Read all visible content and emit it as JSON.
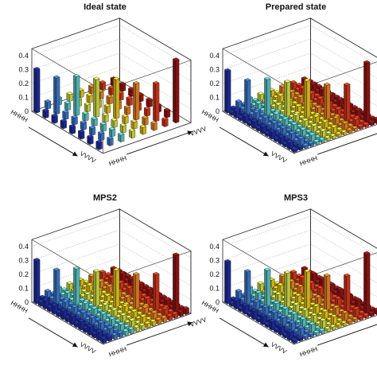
{
  "figure": {
    "panels": [
      "Ideal state",
      "Prepared state",
      "MPS2",
      "MPS3"
    ]
  },
  "colors": {
    "colormap": [
      "#1f2fa8",
      "#3f7fd6",
      "#62d0cf",
      "#d8e84a",
      "#f0d020",
      "#f28a22",
      "#e23a1c",
      "#a01414"
    ],
    "frame": "#222222",
    "grid": "#999999"
  },
  "chart_data": [
    {
      "type": "bar3d",
      "title": "Ideal state",
      "xlabel": "",
      "ylabel": "",
      "x_ticklabels": [
        "HHHH",
        "VVVV"
      ],
      "y_ticklabels": [
        "HHHH",
        "VVVV"
      ],
      "z_ticks": [
        "0",
        "0.1",
        "0.2",
        "0.3",
        "0.4"
      ],
      "zlim": [
        0,
        0.45
      ],
      "grid": true,
      "grid_size": [
        16,
        16
      ],
      "matrix_rows": [
        [
          0.31,
          0.0,
          0.05,
          0.0,
          0.05,
          0.0,
          0.05,
          0.0,
          0.05,
          0.0,
          0.05,
          0.0,
          0.05,
          0.0,
          0.05,
          0.0
        ],
        [
          0.0,
          0.0,
          0.0,
          0.0,
          0.0,
          0.0,
          0.0,
          0.0,
          0.0,
          0.0,
          0.0,
          0.0,
          0.0,
          0.0,
          0.0,
          0.0
        ],
        [
          0.05,
          0.0,
          0.26,
          0.0,
          0.05,
          0.0,
          0.05,
          0.0,
          0.05,
          0.0,
          0.05,
          0.0,
          0.05,
          0.0,
          0.05,
          0.0
        ],
        [
          0.0,
          0.0,
          0.0,
          0.0,
          0.0,
          0.0,
          0.0,
          0.0,
          0.0,
          0.0,
          0.0,
          0.0,
          0.0,
          0.0,
          0.0,
          0.0
        ],
        [
          0.05,
          0.0,
          0.05,
          0.0,
          0.28,
          0.0,
          0.05,
          0.0,
          0.05,
          0.0,
          0.05,
          0.0,
          0.05,
          0.0,
          0.05,
          0.0
        ],
        [
          0.0,
          0.0,
          0.0,
          0.0,
          0.0,
          0.0,
          0.0,
          0.0,
          0.0,
          0.0,
          0.0,
          0.0,
          0.0,
          0.0,
          0.0,
          0.0
        ],
        [
          0.05,
          0.0,
          0.05,
          0.0,
          0.05,
          0.0,
          0.27,
          0.0,
          0.05,
          0.0,
          0.05,
          0.0,
          0.05,
          0.0,
          0.05,
          0.0
        ],
        [
          0.0,
          0.0,
          0.0,
          0.0,
          0.0,
          0.0,
          0.0,
          0.0,
          0.0,
          0.0,
          0.0,
          0.0,
          0.0,
          0.0,
          0.0,
          0.0
        ],
        [
          0.05,
          0.0,
          0.05,
          0.0,
          0.05,
          0.0,
          0.05,
          0.0,
          0.28,
          0.0,
          0.05,
          0.0,
          0.05,
          0.0,
          0.05,
          0.0
        ],
        [
          0.0,
          0.0,
          0.0,
          0.0,
          0.0,
          0.0,
          0.0,
          0.0,
          0.0,
          0.0,
          0.0,
          0.0,
          0.0,
          0.0,
          0.0,
          0.0
        ],
        [
          0.05,
          0.0,
          0.05,
          0.0,
          0.05,
          0.0,
          0.05,
          0.0,
          0.05,
          0.0,
          0.26,
          0.0,
          0.05,
          0.0,
          0.05,
          0.0
        ],
        [
          0.0,
          0.0,
          0.0,
          0.0,
          0.0,
          0.0,
          0.0,
          0.0,
          0.0,
          0.0,
          0.0,
          0.0,
          0.0,
          0.0,
          0.0,
          0.0
        ],
        [
          0.05,
          0.0,
          0.05,
          0.0,
          0.05,
          0.0,
          0.05,
          0.0,
          0.05,
          0.0,
          0.05,
          0.0,
          0.27,
          0.0,
          0.05,
          0.0
        ],
        [
          0.0,
          0.0,
          0.0,
          0.0,
          0.0,
          0.0,
          0.0,
          0.0,
          0.0,
          0.0,
          0.0,
          0.0,
          0.0,
          0.0,
          0.0,
          0.0
        ],
        [
          0.05,
          0.0,
          0.05,
          0.0,
          0.05,
          0.0,
          0.05,
          0.0,
          0.05,
          0.0,
          0.05,
          0.0,
          0.05,
          0.0,
          0.45,
          0.0
        ],
        [
          0.0,
          0.0,
          0.0,
          0.0,
          0.0,
          0.0,
          0.0,
          0.0,
          0.0,
          0.0,
          0.0,
          0.0,
          0.0,
          0.0,
          0.0,
          0.0
        ]
      ]
    },
    {
      "type": "bar3d",
      "title": "Prepared state",
      "xlabel": "",
      "ylabel": "",
      "x_ticklabels": [
        "HHHH",
        "VVVV"
      ],
      "y_ticklabels": [
        "HHHH",
        "VVVV"
      ],
      "z_ticks": [
        "0",
        "0.1",
        "0.2",
        "0.3",
        "0.4"
      ],
      "zlim": [
        0,
        0.45
      ],
      "grid": true,
      "grid_size": [
        16,
        16
      ],
      "matrix_rows": [
        [
          0.3,
          0.02,
          0.05,
          0.02,
          0.05,
          0.02,
          0.05,
          0.02,
          0.05,
          0.02,
          0.05,
          0.02,
          0.05,
          0.02,
          0.05,
          0.02
        ],
        [
          0.02,
          0.03,
          0.02,
          0.02,
          0.02,
          0.02,
          0.02,
          0.02,
          0.02,
          0.02,
          0.02,
          0.02,
          0.02,
          0.02,
          0.02,
          0.02
        ],
        [
          0.05,
          0.02,
          0.24,
          0.02,
          0.05,
          0.02,
          0.05,
          0.02,
          0.05,
          0.02,
          0.05,
          0.02,
          0.05,
          0.02,
          0.05,
          0.02
        ],
        [
          0.02,
          0.02,
          0.02,
          0.03,
          0.02,
          0.02,
          0.02,
          0.02,
          0.02,
          0.02,
          0.02,
          0.02,
          0.02,
          0.02,
          0.02,
          0.02
        ],
        [
          0.05,
          0.02,
          0.05,
          0.02,
          0.26,
          0.02,
          0.05,
          0.02,
          0.05,
          0.02,
          0.05,
          0.02,
          0.05,
          0.02,
          0.05,
          0.02
        ],
        [
          0.02,
          0.02,
          0.02,
          0.02,
          0.02,
          0.03,
          0.02,
          0.02,
          0.02,
          0.02,
          0.02,
          0.02,
          0.02,
          0.02,
          0.02,
          0.02
        ],
        [
          0.05,
          0.02,
          0.05,
          0.02,
          0.05,
          0.02,
          0.25,
          0.02,
          0.05,
          0.02,
          0.05,
          0.02,
          0.05,
          0.02,
          0.05,
          0.02
        ],
        [
          0.02,
          0.02,
          0.02,
          0.02,
          0.02,
          0.02,
          0.02,
          0.03,
          0.02,
          0.02,
          0.02,
          0.02,
          0.02,
          0.02,
          0.02,
          0.02
        ],
        [
          0.05,
          0.02,
          0.05,
          0.02,
          0.05,
          0.02,
          0.05,
          0.02,
          0.27,
          0.02,
          0.05,
          0.02,
          0.05,
          0.02,
          0.05,
          0.02
        ],
        [
          0.02,
          0.02,
          0.02,
          0.02,
          0.02,
          0.02,
          0.02,
          0.02,
          0.02,
          0.03,
          0.02,
          0.02,
          0.02,
          0.02,
          0.02,
          0.02
        ],
        [
          0.05,
          0.02,
          0.05,
          0.02,
          0.05,
          0.02,
          0.05,
          0.02,
          0.05,
          0.02,
          0.25,
          0.02,
          0.05,
          0.02,
          0.05,
          0.02
        ],
        [
          0.02,
          0.02,
          0.02,
          0.02,
          0.02,
          0.02,
          0.02,
          0.02,
          0.02,
          0.02,
          0.02,
          0.03,
          0.02,
          0.02,
          0.02,
          0.02
        ],
        [
          0.05,
          0.02,
          0.05,
          0.02,
          0.05,
          0.02,
          0.05,
          0.02,
          0.05,
          0.02,
          0.05,
          0.02,
          0.26,
          0.02,
          0.05,
          0.02
        ],
        [
          0.02,
          0.02,
          0.02,
          0.02,
          0.02,
          0.02,
          0.02,
          0.02,
          0.02,
          0.02,
          0.02,
          0.02,
          0.02,
          0.03,
          0.02,
          0.02
        ],
        [
          0.05,
          0.02,
          0.05,
          0.02,
          0.05,
          0.02,
          0.05,
          0.02,
          0.05,
          0.02,
          0.05,
          0.02,
          0.05,
          0.02,
          0.43,
          0.02
        ],
        [
          0.02,
          0.02,
          0.02,
          0.02,
          0.02,
          0.02,
          0.02,
          0.02,
          0.02,
          0.02,
          0.02,
          0.02,
          0.02,
          0.02,
          0.02,
          0.03
        ]
      ]
    },
    {
      "type": "bar3d",
      "title": "MPS2",
      "xlabel": "",
      "ylabel": "",
      "x_ticklabels": [
        "HHHH",
        "VVVV"
      ],
      "y_ticklabels": [
        "HHHH",
        "VVVV"
      ],
      "z_ticks": [
        "0",
        "0.1",
        "0.2",
        "0.3",
        "0.4"
      ],
      "zlim": [
        0,
        0.45
      ],
      "grid": true,
      "grid_size": [
        16,
        16
      ],
      "matrix_rows": [
        [
          0.31,
          0.03,
          0.06,
          0.03,
          0.06,
          0.03,
          0.06,
          0.03,
          0.06,
          0.03,
          0.06,
          0.03,
          0.06,
          0.03,
          0.06,
          0.03
        ],
        [
          0.03,
          0.04,
          0.03,
          0.03,
          0.03,
          0.03,
          0.03,
          0.03,
          0.03,
          0.03,
          0.03,
          0.03,
          0.03,
          0.03,
          0.03,
          0.03
        ],
        [
          0.06,
          0.03,
          0.25,
          0.03,
          0.06,
          0.03,
          0.06,
          0.03,
          0.06,
          0.03,
          0.06,
          0.03,
          0.06,
          0.03,
          0.06,
          0.03
        ],
        [
          0.03,
          0.03,
          0.03,
          0.04,
          0.03,
          0.03,
          0.03,
          0.03,
          0.03,
          0.03,
          0.03,
          0.03,
          0.03,
          0.03,
          0.03,
          0.03
        ],
        [
          0.06,
          0.03,
          0.06,
          0.03,
          0.27,
          0.03,
          0.06,
          0.03,
          0.06,
          0.03,
          0.06,
          0.03,
          0.06,
          0.03,
          0.06,
          0.03
        ],
        [
          0.03,
          0.03,
          0.03,
          0.03,
          0.03,
          0.04,
          0.03,
          0.03,
          0.03,
          0.03,
          0.03,
          0.03,
          0.03,
          0.03,
          0.03,
          0.03
        ],
        [
          0.06,
          0.03,
          0.06,
          0.03,
          0.06,
          0.03,
          0.26,
          0.03,
          0.06,
          0.03,
          0.06,
          0.03,
          0.06,
          0.03,
          0.06,
          0.03
        ],
        [
          0.03,
          0.03,
          0.03,
          0.03,
          0.03,
          0.03,
          0.03,
          0.04,
          0.03,
          0.03,
          0.03,
          0.03,
          0.03,
          0.03,
          0.03,
          0.03
        ],
        [
          0.06,
          0.03,
          0.06,
          0.03,
          0.06,
          0.03,
          0.06,
          0.03,
          0.28,
          0.03,
          0.06,
          0.03,
          0.06,
          0.03,
          0.06,
          0.03
        ],
        [
          0.03,
          0.03,
          0.03,
          0.03,
          0.03,
          0.03,
          0.03,
          0.03,
          0.03,
          0.04,
          0.03,
          0.03,
          0.03,
          0.03,
          0.03,
          0.03
        ],
        [
          0.06,
          0.03,
          0.06,
          0.03,
          0.06,
          0.03,
          0.06,
          0.03,
          0.06,
          0.03,
          0.26,
          0.03,
          0.06,
          0.03,
          0.06,
          0.03
        ],
        [
          0.03,
          0.03,
          0.03,
          0.03,
          0.03,
          0.03,
          0.03,
          0.03,
          0.03,
          0.03,
          0.03,
          0.04,
          0.03,
          0.03,
          0.03,
          0.03
        ],
        [
          0.06,
          0.03,
          0.06,
          0.03,
          0.06,
          0.03,
          0.06,
          0.03,
          0.06,
          0.03,
          0.06,
          0.03,
          0.27,
          0.03,
          0.06,
          0.03
        ],
        [
          0.03,
          0.03,
          0.03,
          0.03,
          0.03,
          0.03,
          0.03,
          0.03,
          0.03,
          0.03,
          0.03,
          0.03,
          0.03,
          0.04,
          0.03,
          0.03
        ],
        [
          0.06,
          0.03,
          0.06,
          0.03,
          0.06,
          0.03,
          0.06,
          0.03,
          0.06,
          0.03,
          0.06,
          0.03,
          0.06,
          0.03,
          0.42,
          0.03
        ],
        [
          0.03,
          0.03,
          0.03,
          0.03,
          0.03,
          0.03,
          0.03,
          0.03,
          0.03,
          0.03,
          0.03,
          0.03,
          0.03,
          0.03,
          0.03,
          0.04
        ]
      ]
    },
    {
      "type": "bar3d",
      "title": "MPS3",
      "xlabel": "",
      "ylabel": "",
      "x_ticklabels": [
        "HHHH",
        "VVVV"
      ],
      "y_ticklabels": [
        "HHHH",
        "VVVV"
      ],
      "z_ticks": [
        "0",
        "0.1",
        "0.2",
        "0.3",
        "0.4"
      ],
      "zlim": [
        0,
        0.45
      ],
      "grid": true,
      "grid_size": [
        16,
        16
      ],
      "matrix_rows": [
        [
          0.3,
          0.02,
          0.06,
          0.02,
          0.06,
          0.02,
          0.06,
          0.02,
          0.06,
          0.02,
          0.06,
          0.02,
          0.06,
          0.02,
          0.06,
          0.02
        ],
        [
          0.02,
          0.03,
          0.02,
          0.02,
          0.02,
          0.02,
          0.02,
          0.02,
          0.02,
          0.02,
          0.02,
          0.02,
          0.02,
          0.02,
          0.02,
          0.02
        ],
        [
          0.06,
          0.02,
          0.24,
          0.02,
          0.06,
          0.02,
          0.06,
          0.02,
          0.06,
          0.02,
          0.06,
          0.02,
          0.06,
          0.02,
          0.06,
          0.02
        ],
        [
          0.02,
          0.02,
          0.02,
          0.03,
          0.02,
          0.02,
          0.02,
          0.02,
          0.02,
          0.02,
          0.02,
          0.02,
          0.02,
          0.02,
          0.02,
          0.02
        ],
        [
          0.06,
          0.02,
          0.06,
          0.02,
          0.26,
          0.02,
          0.06,
          0.02,
          0.06,
          0.02,
          0.06,
          0.02,
          0.06,
          0.02,
          0.06,
          0.02
        ],
        [
          0.02,
          0.02,
          0.02,
          0.02,
          0.02,
          0.03,
          0.02,
          0.02,
          0.02,
          0.02,
          0.02,
          0.02,
          0.02,
          0.02,
          0.02,
          0.02
        ],
        [
          0.06,
          0.02,
          0.06,
          0.02,
          0.06,
          0.02,
          0.25,
          0.02,
          0.06,
          0.02,
          0.06,
          0.02,
          0.06,
          0.02,
          0.06,
          0.02
        ],
        [
          0.02,
          0.02,
          0.02,
          0.02,
          0.02,
          0.02,
          0.02,
          0.03,
          0.02,
          0.02,
          0.02,
          0.02,
          0.02,
          0.02,
          0.02,
          0.02
        ],
        [
          0.06,
          0.02,
          0.06,
          0.02,
          0.06,
          0.02,
          0.06,
          0.02,
          0.27,
          0.02,
          0.06,
          0.02,
          0.06,
          0.02,
          0.06,
          0.02
        ],
        [
          0.02,
          0.02,
          0.02,
          0.02,
          0.02,
          0.02,
          0.02,
          0.02,
          0.02,
          0.03,
          0.02,
          0.02,
          0.02,
          0.02,
          0.02,
          0.02
        ],
        [
          0.06,
          0.02,
          0.06,
          0.02,
          0.06,
          0.02,
          0.06,
          0.02,
          0.06,
          0.02,
          0.25,
          0.02,
          0.06,
          0.02,
          0.06,
          0.02
        ],
        [
          0.02,
          0.02,
          0.02,
          0.02,
          0.02,
          0.02,
          0.02,
          0.02,
          0.02,
          0.02,
          0.02,
          0.03,
          0.02,
          0.02,
          0.02,
          0.02
        ],
        [
          0.06,
          0.02,
          0.06,
          0.02,
          0.06,
          0.02,
          0.06,
          0.02,
          0.06,
          0.02,
          0.06,
          0.02,
          0.26,
          0.02,
          0.06,
          0.02
        ],
        [
          0.02,
          0.02,
          0.02,
          0.02,
          0.02,
          0.02,
          0.02,
          0.02,
          0.02,
          0.02,
          0.02,
          0.02,
          0.02,
          0.03,
          0.02,
          0.02
        ],
        [
          0.06,
          0.02,
          0.06,
          0.02,
          0.06,
          0.02,
          0.06,
          0.02,
          0.06,
          0.02,
          0.06,
          0.02,
          0.06,
          0.02,
          0.43,
          0.02
        ],
        [
          0.02,
          0.02,
          0.02,
          0.02,
          0.02,
          0.02,
          0.02,
          0.02,
          0.02,
          0.02,
          0.02,
          0.02,
          0.02,
          0.02,
          0.02,
          0.03
        ]
      ]
    }
  ]
}
